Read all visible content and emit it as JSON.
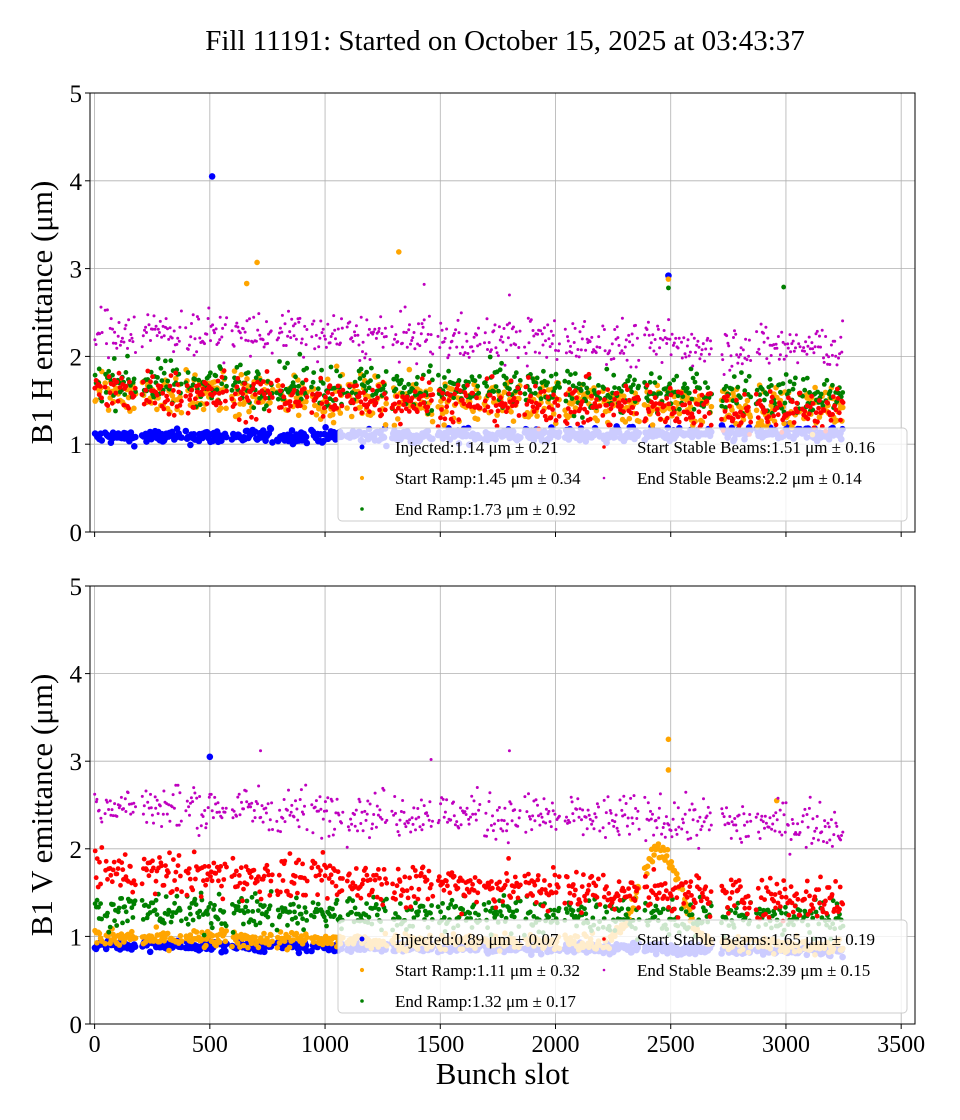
{
  "title": "Fill 11191: Started on October 15, 2025 at 03:43:37",
  "chart_data": [
    {
      "type": "scatter",
      "ylabel": "B1 H emittance (μm)",
      "xlabel": "",
      "xlim": [
        -20,
        3560
      ],
      "ylim": [
        0,
        5
      ],
      "xticks": [
        0,
        500,
        1000,
        1500,
        2000,
        2500,
        3000,
        3500
      ],
      "yticks": [
        0,
        1,
        2,
        3,
        4,
        5
      ],
      "xtick_labels_shown": false,
      "grid": true,
      "legend_placement": "lower-right",
      "trains": [
        [
          0,
          30
        ],
        [
          45,
          175
        ],
        [
          205,
          375
        ],
        [
          395,
          570
        ],
        [
          595,
          770
        ],
        [
          790,
          920
        ],
        [
          940,
          1075
        ],
        [
          1095,
          1265
        ],
        [
          1290,
          1465
        ],
        [
          1490,
          1670
        ],
        [
          1690,
          1845
        ],
        [
          1865,
          2015
        ],
        [
          2040,
          2190
        ],
        [
          2205,
          2360
        ],
        [
          2385,
          2535
        ],
        [
          2545,
          2675
        ],
        [
          2720,
          2845
        ],
        [
          2870,
          3060
        ],
        [
          3070,
          3245
        ]
      ],
      "series": [
        {
          "name": "Injected",
          "legend": "Injected:1.14 μm ± 0.21",
          "color": "#0000ff",
          "level_first_train": 1.08,
          "level_last_train": 1.12,
          "spread": 0.04,
          "outliers": [
            [
              510,
              4.05
            ],
            [
              2490,
              2.92
            ]
          ]
        },
        {
          "name": "Start Ramp",
          "legend": "Start Ramp:1.45 μm ± 0.34",
          "color": "#ffa500",
          "level_first_train": 1.6,
          "level_last_train": 1.4,
          "spread": 0.12,
          "outliers": [
            [
              705,
              3.07
            ],
            [
              1320,
              3.19
            ],
            [
              660,
              2.83
            ],
            [
              2490,
              2.88
            ]
          ]
        },
        {
          "name": "End Ramp",
          "legend": "End Ramp:1.73 μm ± 0.92",
          "color": "#008000",
          "level_first_train": 1.72,
          "level_last_train": 1.55,
          "spread": 0.12,
          "outliers": [
            [
              2990,
              2.79
            ],
            [
              2490,
              2.78
            ]
          ]
        },
        {
          "name": "Start Stable Beams",
          "legend": "Start Stable Beams:1.51 μm ± 0.16",
          "color": "#ff0000",
          "level_first_train": 1.6,
          "level_last_train": 1.38,
          "spread": 0.12,
          "outliers": []
        },
        {
          "name": "End Stable Beams",
          "legend": "End Stable Beams:2.2 μm ± 0.14",
          "color": "#bf00bf",
          "level_first_train": 2.3,
          "level_last_train": 2.1,
          "spread": 0.13,
          "outliers": [
            [
              1430,
              2.82
            ],
            [
              1800,
              2.7
            ]
          ]
        }
      ]
    },
    {
      "type": "scatter",
      "ylabel": "B1 V emittance (μm)",
      "xlabel": "Bunch slot",
      "xlim": [
        -20,
        3560
      ],
      "ylim": [
        0,
        5
      ],
      "xticks": [
        0,
        500,
        1000,
        1500,
        2000,
        2500,
        3000,
        3500
      ],
      "yticks": [
        0,
        1,
        2,
        3,
        4,
        5
      ],
      "xtick_labels_shown": true,
      "grid": true,
      "legend_placement": "lower-right",
      "trains": [
        [
          0,
          30
        ],
        [
          45,
          175
        ],
        [
          205,
          375
        ],
        [
          395,
          570
        ],
        [
          595,
          770
        ],
        [
          790,
          920
        ],
        [
          940,
          1075
        ],
        [
          1095,
          1265
        ],
        [
          1290,
          1465
        ],
        [
          1490,
          1670
        ],
        [
          1690,
          1845
        ],
        [
          1865,
          2015
        ],
        [
          2040,
          2190
        ],
        [
          2205,
          2360
        ],
        [
          2385,
          2535
        ],
        [
          2545,
          2675
        ],
        [
          2720,
          2845
        ],
        [
          2870,
          3060
        ],
        [
          3070,
          3245
        ]
      ],
      "series": [
        {
          "name": "Injected",
          "legend": "Injected:0.89 μm ± 0.07",
          "color": "#0000ff",
          "level_first_train": 0.9,
          "level_last_train": 0.85,
          "spread": 0.03,
          "outliers": [
            [
              500,
              3.05
            ]
          ]
        },
        {
          "name": "Start Ramp",
          "legend": "Start Ramp:1.11 μm ± 0.32",
          "color": "#ffa500",
          "level_first_train": 0.98,
          "level_last_train": 0.9,
          "spread": 0.05,
          "outliers": [
            [
              2490,
              3.25
            ],
            [
              2490,
              2.9
            ],
            [
              2960,
              2.55
            ]
          ],
          "hump": {
            "center": 2450,
            "peak": 2.0,
            "width": 120
          }
        },
        {
          "name": "End Ramp",
          "legend": "End Ramp:1.32 μm ± 0.17",
          "color": "#008000",
          "level_first_train": 1.3,
          "level_last_train": 1.2,
          "spread": 0.1,
          "outliers": []
        },
        {
          "name": "Start Stable Beams",
          "legend": "Start Stable Beams:1.65 μm ± 0.19",
          "color": "#ff0000",
          "level_first_train": 1.75,
          "level_last_train": 1.42,
          "spread": 0.12,
          "outliers": []
        },
        {
          "name": "End Stable Beams",
          "legend": "End Stable Beams:2.39 μm ± 0.15",
          "color": "#bf00bf",
          "level_first_train": 2.5,
          "level_last_train": 2.28,
          "spread": 0.13,
          "outliers": [
            [
              720,
              3.12
            ],
            [
              1460,
              3.02
            ],
            [
              1800,
              3.12
            ]
          ]
        }
      ]
    }
  ]
}
